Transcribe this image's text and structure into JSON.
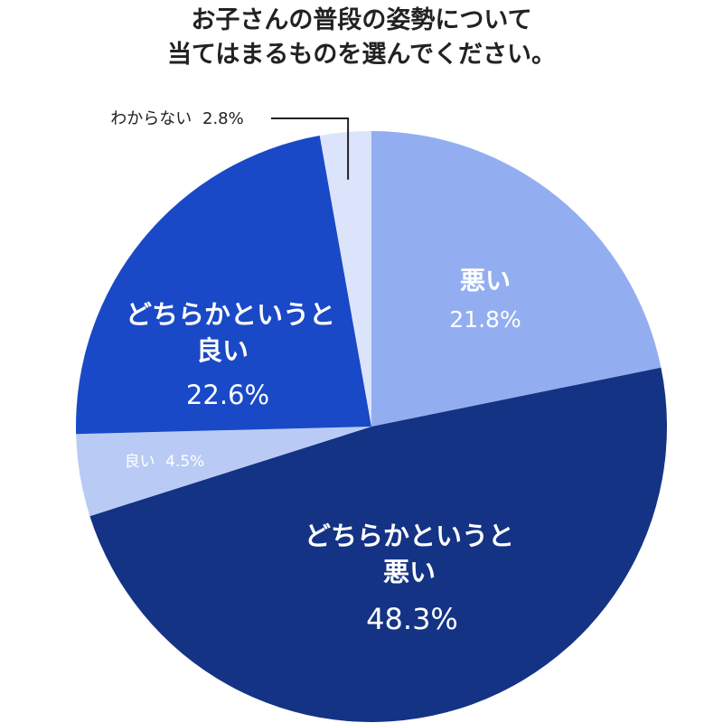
{
  "chart_data": {
    "type": "pie",
    "title_lines": [
      "お子さんの普段の姿勢について",
      "当てはまるものを選んでください。"
    ],
    "start": "top, clockwise",
    "slices": [
      {
        "label_lines": [
          "悪い"
        ],
        "value": 21.8,
        "value_text": "21.8%",
        "color": "#93aef0"
      },
      {
        "label_lines": [
          "どちらかというと",
          "悪い"
        ],
        "value": 48.3,
        "value_text": "48.3%",
        "color": "#143385"
      },
      {
        "label_lines": [
          "良い"
        ],
        "value": 4.5,
        "value_text": "4.5%",
        "color": "#b9cbf5"
      },
      {
        "label_lines": [
          "どちらかというと",
          "良い"
        ],
        "value": 22.6,
        "value_text": "22.6%",
        "color": "#1a49c7"
      },
      {
        "label_lines": [
          "わからない"
        ],
        "value": 2.8,
        "value_text": "2.8%",
        "color": "#dbe4fb"
      }
    ]
  }
}
